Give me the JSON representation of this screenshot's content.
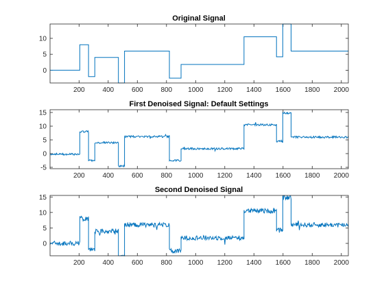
{
  "figure": {
    "line_color": "#0072bd",
    "axis_color": "#262626",
    "background": "#ffffff"
  },
  "chart_data": [
    {
      "type": "line",
      "title": "Original Signal",
      "xlabel": "",
      "ylabel": "",
      "xlim": [
        1,
        2048
      ],
      "ylim": [
        -4,
        14.5
      ],
      "xticks": [
        200,
        400,
        600,
        800,
        1000,
        1200,
        1400,
        1600,
        1800,
        2000
      ],
      "yticks": [
        0,
        5,
        10
      ],
      "grid": false,
      "noise": 0,
      "series": [
        {
          "steps": [
            {
              "x0": 1,
              "x1": 205,
              "y": 0
            },
            {
              "x0": 205,
              "x1": 265,
              "y": 8
            },
            {
              "x0": 265,
              "x1": 308,
              "y": -2
            },
            {
              "x0": 308,
              "x1": 470,
              "y": 4
            },
            {
              "x0": 470,
              "x1": 512,
              "y": -4.5
            },
            {
              "x0": 512,
              "x1": 820,
              "y": 6
            },
            {
              "x0": 820,
              "x1": 900,
              "y": -2.5
            },
            {
              "x0": 900,
              "x1": 1332,
              "y": 1.8
            },
            {
              "x0": 1332,
              "x1": 1555,
              "y": 10.5
            },
            {
              "x0": 1555,
              "x1": 1598,
              "y": 4.2
            },
            {
              "x0": 1598,
              "x1": 1655,
              "y": 15
            },
            {
              "x0": 1655,
              "x1": 2048,
              "y": 6
            }
          ]
        }
      ]
    },
    {
      "type": "line",
      "title": "First Denoised Signal: Default Settings",
      "xlabel": "",
      "ylabel": "",
      "xlim": [
        1,
        2048
      ],
      "ylim": [
        -5.5,
        16
      ],
      "xticks": [
        200,
        400,
        600,
        800,
        1000,
        1200,
        1400,
        1600,
        1800,
        2000
      ],
      "yticks": [
        -5,
        0,
        5,
        10,
        15
      ],
      "grid": false,
      "noise": 0.35,
      "series": [
        {
          "steps": [
            {
              "x0": 1,
              "x1": 205,
              "y": -0.2
            },
            {
              "x0": 205,
              "x1": 265,
              "y": 8
            },
            {
              "x0": 265,
              "x1": 308,
              "y": -2.5
            },
            {
              "x0": 308,
              "x1": 470,
              "y": 4
            },
            {
              "x0": 470,
              "x1": 512,
              "y": -4.5
            },
            {
              "x0": 512,
              "x1": 820,
              "y": 6.2
            },
            {
              "x0": 820,
              "x1": 900,
              "y": -2.5
            },
            {
              "x0": 900,
              "x1": 1332,
              "y": 1.8
            },
            {
              "x0": 1332,
              "x1": 1555,
              "y": 10.5
            },
            {
              "x0": 1555,
              "x1": 1598,
              "y": 4.5
            },
            {
              "x0": 1598,
              "x1": 1655,
              "y": 14.8
            },
            {
              "x0": 1655,
              "x1": 2048,
              "y": 6
            }
          ]
        }
      ]
    },
    {
      "type": "line",
      "title": "Second Denoised Signal",
      "xlabel": "",
      "ylabel": "",
      "xlim": [
        1,
        2048
      ],
      "ylim": [
        -4,
        15.5
      ],
      "xticks": [
        200,
        400,
        600,
        800,
        1000,
        1200,
        1400,
        1600,
        1800,
        2000
      ],
      "yticks": [
        0,
        5,
        10,
        15
      ],
      "grid": false,
      "noise": 0.75,
      "series": [
        {
          "steps": [
            {
              "x0": 1,
              "x1": 205,
              "y": 0
            },
            {
              "x0": 205,
              "x1": 265,
              "y": 8
            },
            {
              "x0": 265,
              "x1": 308,
              "y": -2
            },
            {
              "x0": 308,
              "x1": 470,
              "y": 4
            },
            {
              "x0": 470,
              "x1": 512,
              "y": -4.5
            },
            {
              "x0": 512,
              "x1": 820,
              "y": 6
            },
            {
              "x0": 820,
              "x1": 900,
              "y": -2.5
            },
            {
              "x0": 900,
              "x1": 1332,
              "y": 1.8
            },
            {
              "x0": 1332,
              "x1": 1555,
              "y": 10.5
            },
            {
              "x0": 1555,
              "x1": 1598,
              "y": 4.2
            },
            {
              "x0": 1598,
              "x1": 1655,
              "y": 14.8
            },
            {
              "x0": 1655,
              "x1": 2048,
              "y": 6
            }
          ]
        }
      ]
    }
  ]
}
